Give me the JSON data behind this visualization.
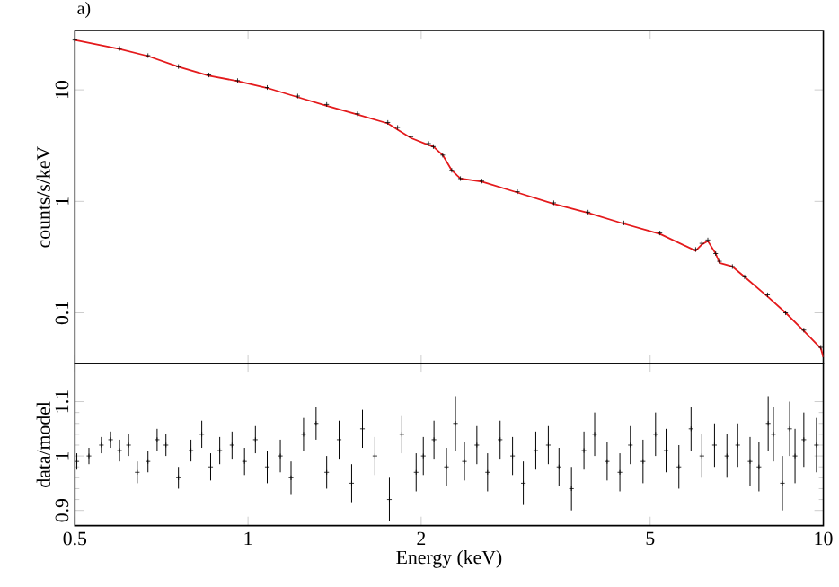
{
  "chart_data": [
    {
      "type": "line",
      "title": "a)",
      "ylabel": "counts/s/keV",
      "log": "xy",
      "tick_labels": "y",
      "xlim": [
        0.5,
        10
      ],
      "ylim": [
        0.035,
        34
      ],
      "xticks": [
        0.5,
        1,
        2,
        5,
        10
      ],
      "yticks": [
        0.1,
        1,
        10
      ],
      "series": [
        {
          "type": "scatter",
          "marker": "cross",
          "color": "#000000",
          "x": [
            0.5,
            0.598,
            0.67,
            0.757,
            0.855,
            0.959,
            1.08,
            1.22,
            1.37,
            1.55,
            1.75,
            1.82,
            1.92,
            2.06,
            2.1,
            2.18,
            2.26,
            2.34,
            2.55,
            2.94,
            3.4,
            3.9,
            4.5,
            5.2,
            6.0,
            6.15,
            6.3,
            6.5,
            6.6,
            6.95,
            7.3,
            8.0,
            8.6,
            9.25,
            9.9
          ],
          "values": [
            28,
            23.5,
            20.3,
            16.2,
            13.6,
            12.1,
            10.5,
            8.8,
            7.4,
            6.1,
            5.1,
            4.6,
            3.8,
            3.3,
            3.1,
            2.6,
            1.9,
            1.6,
            1.52,
            1.22,
            0.97,
            0.8,
            0.64,
            0.52,
            0.37,
            0.42,
            0.45,
            0.34,
            0.29,
            0.26,
            0.21,
            0.145,
            0.1,
            0.07,
            0.049
          ]
        },
        {
          "type": "line",
          "color": "#e41a1c",
          "x": [
            0.5,
            0.598,
            0.67,
            0.757,
            0.855,
            0.959,
            1.08,
            1.22,
            1.37,
            1.55,
            1.75,
            1.82,
            1.92,
            2.06,
            2.1,
            2.18,
            2.26,
            2.34,
            2.55,
            2.94,
            3.4,
            3.9,
            4.5,
            5.2,
            6.0,
            6.15,
            6.3,
            6.5,
            6.6,
            6.95,
            7.3,
            8.0,
            8.6,
            9.25,
            9.9,
            10
          ],
          "values": [
            28,
            23.3,
            20.1,
            16.1,
            13.4,
            12.0,
            10.4,
            8.6,
            7.2,
            6.0,
            5.0,
            4.4,
            3.7,
            3.2,
            3.1,
            2.6,
            1.9,
            1.6,
            1.5,
            1.2,
            0.95,
            0.79,
            0.63,
            0.51,
            0.36,
            0.41,
            0.44,
            0.34,
            0.28,
            0.26,
            0.21,
            0.14,
            0.1,
            0.069,
            0.048,
            0.04
          ]
        }
      ]
    },
    {
      "type": "scatter",
      "xlabel": "Energy (keV)",
      "ylabel": "data/model",
      "log": "x",
      "xlim": [
        0.5,
        10
      ],
      "ylim": [
        0.872,
        1.17
      ],
      "xticks": [
        0.5,
        1,
        2,
        5,
        10
      ],
      "yticks": [
        0.9,
        1,
        1.1
      ],
      "series": [
        {
          "color": "#000000",
          "marker": "cross",
          "x": [
            0.504,
            0.529,
            0.556,
            0.577,
            0.598,
            0.62,
            0.642,
            0.67,
            0.695,
            0.72,
            0.757,
            0.796,
            0.831,
            0.861,
            0.893,
            0.938,
            0.986,
            1.03,
            1.08,
            1.138,
            1.188,
            1.249,
            1.313,
            1.37,
            1.44,
            1.514,
            1.581,
            1.662,
            1.761,
            1.851,
            1.96,
            2.017,
            2.105,
            2.213,
            2.294,
            2.378,
            2.499,
            2.609,
            2.743,
            2.883,
            3.01,
            3.164,
            3.327,
            3.472,
            3.65,
            3.837,
            4.005,
            4.21,
            4.43,
            4.62,
            4.86,
            5.11,
            5.33,
            5.61,
            5.89,
            6.15,
            6.47,
            6.8,
            7.1,
            7.46,
            7.73,
            8.02,
            8.19,
            8.49,
            8.74,
            8.93,
            9.25,
            9.73
          ],
          "values": [
            0.99,
            1.0,
            1.02,
            1.03,
            1.01,
            1.02,
            0.97,
            0.99,
            1.03,
            1.02,
            0.96,
            1.01,
            1.04,
            0.98,
            1.01,
            1.02,
            0.99,
            1.03,
            0.98,
            1.0,
            0.96,
            1.04,
            1.06,
            0.97,
            1.03,
            0.95,
            1.05,
            1.0,
            0.92,
            1.04,
            0.97,
            1.0,
            1.03,
            0.98,
            1.06,
            0.99,
            1.02,
            0.97,
            1.03,
            1.0,
            0.95,
            1.01,
            1.02,
            0.98,
            0.94,
            1.01,
            1.04,
            0.99,
            0.97,
            1.02,
            0.99,
            1.04,
            1.01,
            0.98,
            1.05,
            1.0,
            1.02,
            1.0,
            1.02,
            0.99,
            0.98,
            1.06,
            1.04,
            0.95,
            1.05,
            1.0,
            1.03,
            1.02
          ],
          "errors": [
            0.015,
            0.015,
            0.015,
            0.015,
            0.02,
            0.02,
            0.02,
            0.02,
            0.02,
            0.02,
            0.02,
            0.02,
            0.025,
            0.025,
            0.025,
            0.025,
            0.025,
            0.025,
            0.03,
            0.03,
            0.03,
            0.03,
            0.03,
            0.03,
            0.035,
            0.035,
            0.035,
            0.035,
            0.04,
            0.035,
            0.035,
            0.035,
            0.035,
            0.035,
            0.05,
            0.035,
            0.035,
            0.035,
            0.035,
            0.035,
            0.04,
            0.035,
            0.035,
            0.035,
            0.04,
            0.035,
            0.04,
            0.035,
            0.035,
            0.035,
            0.04,
            0.04,
            0.04,
            0.04,
            0.04,
            0.04,
            0.04,
            0.04,
            0.04,
            0.045,
            0.045,
            0.05,
            0.05,
            0.05,
            0.05,
            0.05,
            0.05,
            0.05
          ]
        }
      ]
    }
  ]
}
